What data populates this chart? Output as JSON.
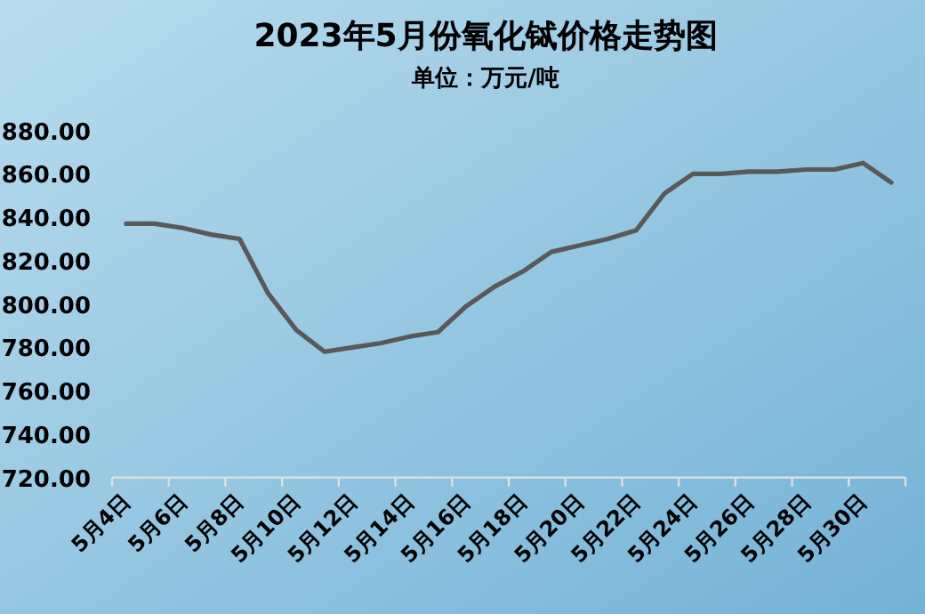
{
  "chart_data": {
    "type": "line",
    "title": "2023年5月份氧化铽价格走势图",
    "subtitle": "单位：万元/吨",
    "categories": [
      "5月4日",
      null,
      "5月6日",
      null,
      "5月8日",
      null,
      "5月10日",
      null,
      "5月12日",
      null,
      "5月14日",
      null,
      "5月16日",
      null,
      "5月18日",
      null,
      "5月20日",
      null,
      "5月22日",
      null,
      "5月24日",
      null,
      "5月26日",
      null,
      "5月28日",
      null,
      "5月30日",
      null
    ],
    "values": [
      837,
      837,
      835,
      832,
      830,
      805,
      788,
      778,
      780,
      782,
      785,
      787,
      799,
      808,
      815,
      824,
      827,
      830,
      834,
      851,
      860,
      860,
      861,
      861,
      862,
      862,
      865,
      856
    ],
    "color": "#595959",
    "ylim": [
      720,
      880
    ],
    "yticks": [
      {
        "value": 720,
        "label": "720.00"
      },
      {
        "value": 740,
        "label": "740.00"
      },
      {
        "value": 760,
        "label": "760.00"
      },
      {
        "value": 780,
        "label": "780.00"
      },
      {
        "value": 800,
        "label": "800.00"
      },
      {
        "value": 820,
        "label": "820.00"
      },
      {
        "value": 840,
        "label": "840.00"
      },
      {
        "value": 860,
        "label": "860.00"
      },
      {
        "value": 880,
        "label": "880.00"
      }
    ]
  }
}
